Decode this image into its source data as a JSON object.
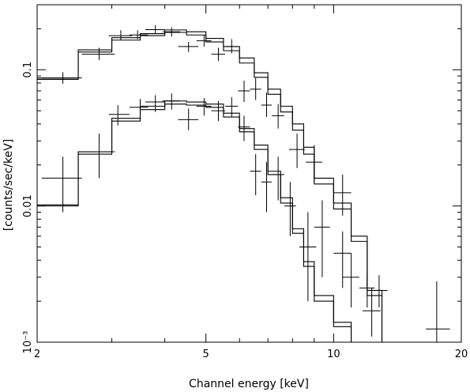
{
  "chart_data": {
    "type": "line",
    "title": "",
    "xlabel": "Channel energy [keV]",
    "ylabel": "[counts/sec/keV]",
    "x_scale": "log",
    "y_scale": "log",
    "xlim": [
      2,
      20
    ],
    "ylim": [
      0.001,
      0.3
    ],
    "x_major_ticks": [
      2,
      5,
      10,
      20
    ],
    "x_tick_labels": [
      "2",
      "5",
      "10",
      "20"
    ],
    "y_major_ticks": [
      0.001,
      0.01,
      0.1
    ],
    "y_tick_labels": [
      "10⁻³",
      "0.01",
      "0.1"
    ],
    "grid": false,
    "legend": "none",
    "colors": {
      "axes": "#000000",
      "data": "#000000",
      "background": "#ffffff"
    },
    "series": [
      {
        "kind": "data",
        "points": [
          {
            "x": 2.3,
            "xlo": 2.05,
            "xhi": 2.55,
            "y": 0.087,
            "ylo": 0.079,
            "yhi": 0.096
          },
          {
            "x": 2.8,
            "xlo": 2.55,
            "xhi": 3.05,
            "y": 0.13,
            "ylo": 0.118,
            "yhi": 0.145
          },
          {
            "x": 3.15,
            "xlo": 2.95,
            "xhi": 3.35,
            "y": 0.178,
            "ylo": 0.165,
            "yhi": 0.195
          },
          {
            "x": 3.45,
            "xlo": 3.3,
            "xhi": 3.65,
            "y": 0.18,
            "ylo": 0.168,
            "yhi": 0.195
          },
          {
            "x": 3.8,
            "xlo": 3.6,
            "xhi": 4.0,
            "y": 0.197,
            "ylo": 0.183,
            "yhi": 0.213
          },
          {
            "x": 4.15,
            "xlo": 3.95,
            "xhi": 4.35,
            "y": 0.19,
            "ylo": 0.175,
            "yhi": 0.205
          },
          {
            "x": 4.55,
            "xlo": 4.3,
            "xhi": 4.8,
            "y": 0.148,
            "ylo": 0.135,
            "yhi": 0.16
          },
          {
            "x": 4.95,
            "xlo": 4.75,
            "xhi": 5.15,
            "y": 0.163,
            "ylo": 0.148,
            "yhi": 0.18
          },
          {
            "x": 5.35,
            "xlo": 5.15,
            "xhi": 5.55,
            "y": 0.13,
            "ylo": 0.116,
            "yhi": 0.145
          },
          {
            "x": 5.75,
            "xlo": 5.55,
            "xhi": 5.95,
            "y": 0.148,
            "ylo": 0.132,
            "yhi": 0.168
          },
          {
            "x": 6.15,
            "xlo": 5.95,
            "xhi": 6.35,
            "y": 0.07,
            "ylo": 0.058,
            "yhi": 0.083
          },
          {
            "x": 6.55,
            "xlo": 6.35,
            "xhi": 6.75,
            "y": 0.072,
            "ylo": 0.06,
            "yhi": 0.087
          },
          {
            "x": 6.95,
            "xlo": 6.75,
            "xhi": 7.15,
            "y": 0.055,
            "ylo": 0.045,
            "yhi": 0.068
          },
          {
            "x": 7.4,
            "xlo": 7.15,
            "xhi": 7.65,
            "y": 0.046,
            "ylo": 0.037,
            "yhi": 0.056
          },
          {
            "x": 8.2,
            "xlo": 7.85,
            "xhi": 8.55,
            "y": 0.026,
            "ylo": 0.019,
            "yhi": 0.034
          },
          {
            "x": 9.0,
            "xlo": 8.6,
            "xhi": 9.4,
            "y": 0.021,
            "ylo": 0.015,
            "yhi": 0.028
          },
          {
            "x": 10.5,
            "xlo": 10.0,
            "xhi": 11.0,
            "y": 0.0125,
            "ylo": 0.0085,
            "yhi": 0.017
          },
          {
            "x": 10.5,
            "xlo": 10.0,
            "xhi": 11.0,
            "y": 0.0045,
            "ylo": 0.0025,
            "yhi": 0.0065
          },
          {
            "x": 12.0,
            "xlo": 11.5,
            "xhi": 12.5,
            "y": 0.0025,
            "ylo": 0.0018,
            "yhi": 0.0032
          },
          {
            "x": 12.8,
            "xlo": 12.4,
            "xhi": 13.4,
            "y": 0.0024,
            "ylo": 0.0018,
            "yhi": 0.0031
          },
          {
            "x": 17.5,
            "xlo": 16.5,
            "xhi": 18.8,
            "y": 0.00125,
            "ylo": 0.0007,
            "yhi": 0.0028
          }
        ]
      },
      {
        "kind": "data",
        "points": [
          {
            "x": 2.3,
            "xlo": 2.05,
            "xhi": 2.55,
            "y": 0.016,
            "ylo": 0.009,
            "yhi": 0.023
          },
          {
            "x": 2.8,
            "xlo": 2.55,
            "xhi": 3.05,
            "y": 0.025,
            "ylo": 0.016,
            "yhi": 0.034
          },
          {
            "x": 3.1,
            "xlo": 2.95,
            "xhi": 3.3,
            "y": 0.047,
            "ylo": 0.039,
            "yhi": 0.055
          },
          {
            "x": 3.5,
            "xlo": 3.3,
            "xhi": 3.65,
            "y": 0.053,
            "ylo": 0.045,
            "yhi": 0.061
          },
          {
            "x": 3.8,
            "xlo": 3.6,
            "xhi": 4.0,
            "y": 0.058,
            "ylo": 0.049,
            "yhi": 0.065
          },
          {
            "x": 4.15,
            "xlo": 3.95,
            "xhi": 4.35,
            "y": 0.059,
            "ylo": 0.051,
            "yhi": 0.067
          },
          {
            "x": 4.55,
            "xlo": 4.3,
            "xhi": 4.8,
            "y": 0.043,
            "ylo": 0.036,
            "yhi": 0.052
          },
          {
            "x": 4.95,
            "xlo": 4.75,
            "xhi": 5.15,
            "y": 0.054,
            "ylo": 0.046,
            "yhi": 0.062
          },
          {
            "x": 5.35,
            "xlo": 5.15,
            "xhi": 5.55,
            "y": 0.05,
            "ylo": 0.042,
            "yhi": 0.059
          },
          {
            "x": 5.75,
            "xlo": 5.55,
            "xhi": 5.95,
            "y": 0.054,
            "ylo": 0.045,
            "yhi": 0.063
          },
          {
            "x": 6.15,
            "xlo": 5.95,
            "xhi": 6.35,
            "y": 0.038,
            "ylo": 0.03,
            "yhi": 0.046
          },
          {
            "x": 6.55,
            "xlo": 6.35,
            "xhi": 6.75,
            "y": 0.018,
            "ylo": 0.012,
            "yhi": 0.024
          },
          {
            "x": 6.95,
            "xlo": 6.75,
            "xhi": 7.15,
            "y": 0.015,
            "ylo": 0.009,
            "yhi": 0.021
          },
          {
            "x": 7.4,
            "xlo": 7.15,
            "xhi": 7.65,
            "y": 0.017,
            "ylo": 0.011,
            "yhi": 0.023
          },
          {
            "x": 7.9,
            "xlo": 7.65,
            "xhi": 8.15,
            "y": 0.01,
            "ylo": 0.006,
            "yhi": 0.015
          },
          {
            "x": 8.7,
            "xlo": 8.3,
            "xhi": 9.1,
            "y": 0.005,
            "ylo": 0.002,
            "yhi": 0.009
          },
          {
            "x": 9.4,
            "xlo": 9.0,
            "xhi": 9.8,
            "y": 0.007,
            "ylo": 0.003,
            "yhi": 0.011
          },
          {
            "x": 11.0,
            "xlo": 10.5,
            "xhi": 11.5,
            "y": 0.003,
            "ylo": 0.0018,
            "yhi": 0.0045
          },
          {
            "x": 12.3,
            "xlo": 11.7,
            "xhi": 12.9,
            "y": 0.0017,
            "ylo": 0.0011,
            "yhi": 0.0025
          }
        ]
      },
      {
        "kind": "model",
        "edges": [
          2.0,
          2.5,
          3.0,
          3.5,
          4.0,
          4.5,
          5.0,
          5.5,
          6.0,
          6.5,
          7.0,
          7.5,
          8.0,
          8.5,
          9.0,
          10.0,
          11.0,
          12.0,
          13.0
        ],
        "values": [
          0.085,
          0.135,
          0.165,
          0.178,
          0.188,
          0.18,
          0.16,
          0.138,
          0.112,
          0.088,
          0.066,
          0.049,
          0.036,
          0.024,
          0.0145,
          0.0095,
          0.0055,
          0.0022
        ]
      },
      {
        "kind": "model",
        "edges": [
          2.0,
          2.5,
          3.0,
          3.5,
          4.0,
          4.5,
          5.0,
          5.5,
          6.0,
          6.5,
          7.0,
          7.5,
          8.0,
          8.5,
          9.0,
          10.0,
          11.0,
          12.0,
          13.0
        ],
        "values": [
          0.087,
          0.14,
          0.172,
          0.184,
          0.196,
          0.19,
          0.17,
          0.148,
          0.122,
          0.095,
          0.072,
          0.054,
          0.04,
          0.027,
          0.016,
          0.0105,
          0.006,
          0.0024
        ]
      },
      {
        "kind": "model",
        "edges": [
          2.0,
          2.5,
          3.0,
          3.5,
          4.0,
          4.5,
          5.0,
          5.5,
          6.0,
          6.5,
          7.0,
          7.5,
          8.0,
          8.5,
          9.0,
          10.0,
          11.0,
          12.0
        ],
        "values": [
          0.01,
          0.024,
          0.042,
          0.051,
          0.056,
          0.055,
          0.053,
          0.045,
          0.035,
          0.026,
          0.017,
          0.0105,
          0.0063,
          0.0036,
          0.002,
          0.0013,
          0.0009
        ]
      },
      {
        "kind": "model",
        "edges": [
          2.0,
          2.5,
          3.0,
          3.5,
          4.0,
          4.5,
          5.0,
          5.5,
          6.0,
          6.5,
          7.0,
          7.5,
          8.0,
          8.5,
          9.0,
          10.0,
          11.0,
          12.0
        ],
        "values": [
          0.0102,
          0.025,
          0.044,
          0.054,
          0.059,
          0.058,
          0.056,
          0.048,
          0.037,
          0.028,
          0.018,
          0.0115,
          0.0068,
          0.0039,
          0.0022,
          0.0014,
          0.001
        ]
      }
    ]
  }
}
